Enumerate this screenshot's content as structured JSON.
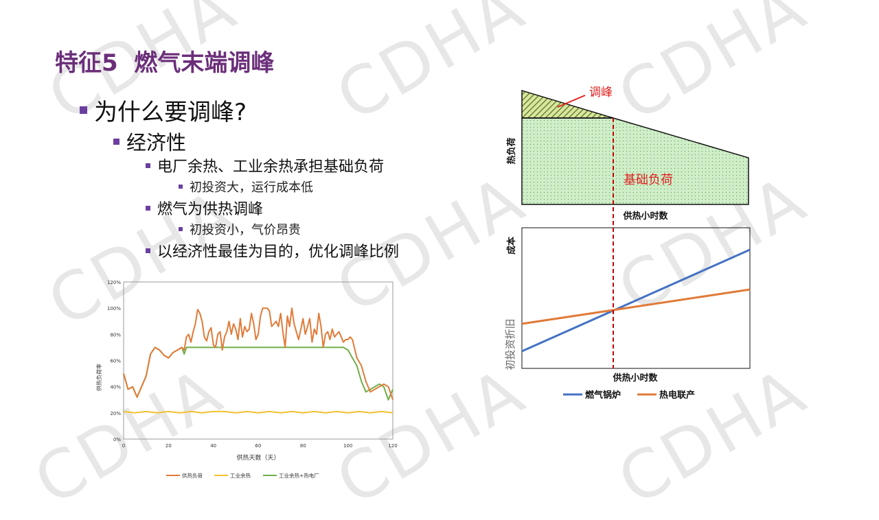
{
  "title": "特征5  燃气末端调峰",
  "bullets": {
    "q": "为什么要调峰?",
    "economy": "经济性",
    "b1": "电厂余热、工业余热承担基础负荷",
    "b1a": "初投资大，运行成本低",
    "b2": "燃气为供热调峰",
    "b2a": "初投资小，气价昂贵",
    "b3": "以经济性最佳为目的，优化调峰比例"
  },
  "watermark": "CDHA",
  "colors": {
    "title": "#6b2f7a",
    "bullet": "#6b3fa0",
    "orange": "#e07b39",
    "yellow": "#f2c12e",
    "green": "#70ad47",
    "blue": "#4472c4",
    "red": "#e02020",
    "fill_green": "#cfeec8"
  },
  "diagram": {
    "peak_label": "调峰",
    "base_label": "基础负荷",
    "y_label_top": "热负荷",
    "x_label_top": "供热小时数",
    "y_label_bottom": "成本",
    "intercept_label": "初投资折旧",
    "x_label_bottom": "供热小时数",
    "legend_gas": "燃气锅炉",
    "legend_chp": "热电联产"
  },
  "chart_data": {
    "type": "line",
    "title": "",
    "xlabel": "供热天数（天）",
    "ylabel": "供热负荷率",
    "xlim": [
      0,
      120
    ],
    "ylim": [
      0,
      120
    ],
    "xticks": [
      0,
      20,
      40,
      60,
      80,
      100,
      120
    ],
    "yticks": [
      "0%",
      "20%",
      "40%",
      "60%",
      "80%",
      "100%",
      "120%"
    ],
    "legend_position": "bottom",
    "series": [
      {
        "name": "供热负荷",
        "x": [
          0,
          2,
          4,
          6,
          8,
          10,
          12,
          14,
          16,
          18,
          20,
          22,
          24,
          26,
          27,
          28,
          29,
          30,
          31,
          32,
          33,
          34,
          35,
          36,
          37,
          38,
          39,
          40,
          41,
          42,
          43,
          44,
          45,
          46,
          47,
          48,
          49,
          50,
          51,
          52,
          53,
          54,
          55,
          56,
          57,
          58,
          59,
          60,
          61,
          62,
          63,
          64,
          65,
          66,
          67,
          68,
          69,
          70,
          71,
          72,
          73,
          74,
          75,
          76,
          77,
          78,
          79,
          80,
          81,
          82,
          83,
          84,
          85,
          86,
          87,
          88,
          89,
          90,
          91,
          92,
          93,
          94,
          95,
          96,
          97,
          98,
          99,
          100,
          101,
          102,
          104,
          106,
          108,
          110,
          112,
          114,
          116,
          118,
          120
        ],
        "y": [
          50,
          38,
          40,
          32,
          40,
          48,
          65,
          70,
          68,
          64,
          62,
          66,
          68,
          70,
          68,
          78,
          80,
          74,
          82,
          88,
          99,
          96,
          90,
          78,
          75,
          82,
          85,
          72,
          70,
          80,
          82,
          68,
          78,
          82,
          90,
          80,
          88,
          84,
          76,
          92,
          78,
          86,
          82,
          84,
          96,
          88,
          76,
          80,
          94,
          100,
          100,
          100,
          98,
          86,
          88,
          90,
          86,
          96,
          82,
          70,
          94,
          86,
          100,
          88,
          82,
          76,
          84,
          92,
          80,
          86,
          92,
          74,
          84,
          80,
          96,
          86,
          70,
          80,
          82,
          76,
          84,
          78,
          80,
          82,
          78,
          74,
          76,
          76,
          78,
          76,
          62,
          56,
          44,
          36,
          38,
          40,
          42,
          40,
          30
        ],
        "color": "#e07b39"
      },
      {
        "name": "工业余热",
        "x": [
          0,
          5,
          10,
          15,
          20,
          25,
          30,
          35,
          40,
          45,
          50,
          55,
          60,
          65,
          70,
          75,
          80,
          85,
          90,
          95,
          100,
          105,
          110,
          115,
          120
        ],
        "y": [
          21,
          20,
          21,
          20,
          21,
          20,
          21,
          20,
          21,
          21,
          20,
          21,
          20,
          21,
          20,
          21,
          20,
          21,
          20,
          21,
          20,
          21,
          20,
          21,
          20
        ],
        "color": "#f2c12e"
      },
      {
        "name": "工业余热+热电厂",
        "x": [
          0,
          2,
          4,
          6,
          8,
          10,
          12,
          14,
          16,
          18,
          20,
          22,
          24,
          26,
          27,
          28,
          30,
          40,
          50,
          60,
          70,
          80,
          90,
          98,
          100,
          102,
          104,
          106,
          108,
          110,
          112,
          114,
          116,
          118,
          120
        ],
        "y": [
          50,
          38,
          40,
          32,
          40,
          48,
          65,
          70,
          68,
          64,
          62,
          66,
          68,
          70,
          65,
          70,
          70,
          70,
          70,
          70,
          70,
          70,
          70,
          70,
          68,
          62,
          56,
          44,
          36,
          38,
          40,
          42,
          40,
          30,
          38
        ],
        "color": "#70ad47"
      }
    ]
  }
}
